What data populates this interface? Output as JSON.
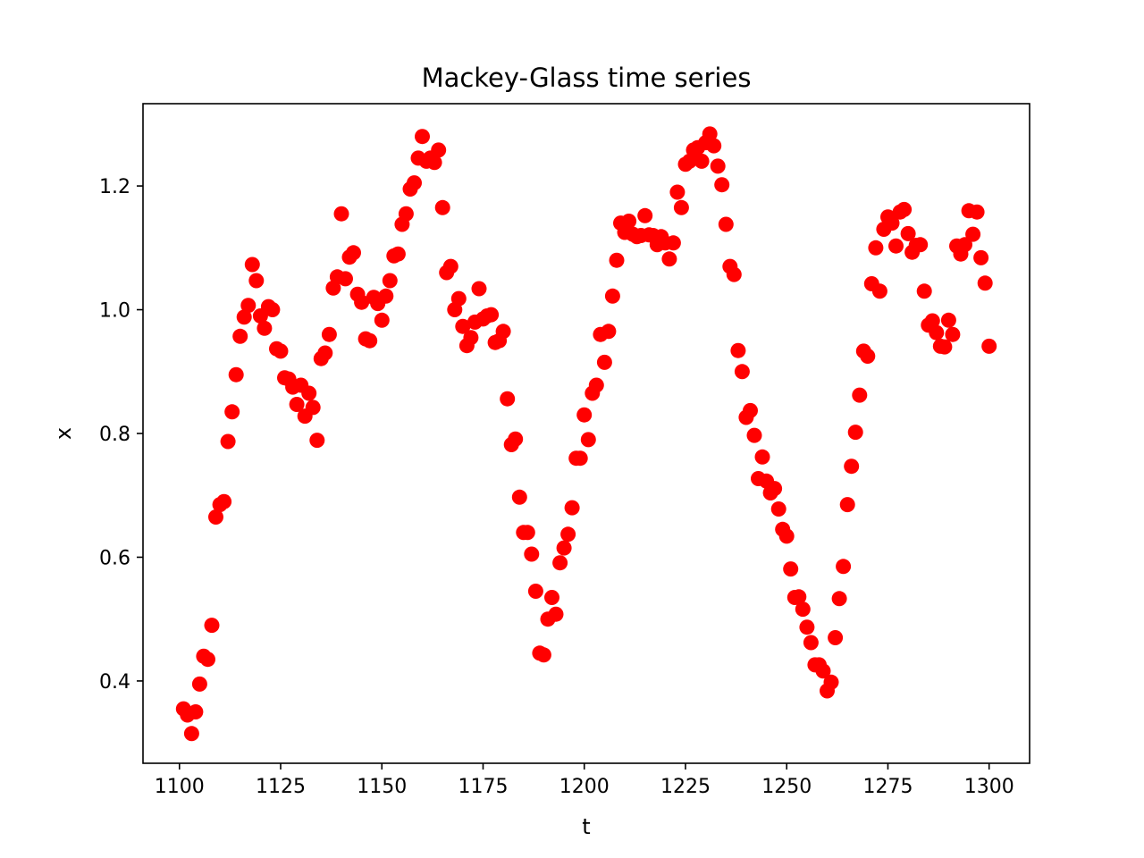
{
  "chart_data": {
    "type": "scatter",
    "title": "Mackey-Glass time series",
    "xlabel": "t",
    "ylabel": "x",
    "xlim": [
      1091,
      1310
    ],
    "ylim": [
      0.267,
      1.333
    ],
    "xticks": [
      1100,
      1125,
      1150,
      1175,
      1200,
      1225,
      1250,
      1275,
      1300
    ],
    "yticks": [
      0.4,
      0.6,
      0.8,
      1.0,
      1.2
    ],
    "ytick_labels": [
      "0.4",
      "0.6",
      "0.8",
      "1.0",
      "1.2"
    ],
    "grid": false,
    "marker": "circle",
    "color": "#ff0000",
    "series": [
      {
        "x": [
          1101,
          1102,
          1103,
          1104,
          1105,
          1106,
          1107,
          1108,
          1109,
          1110,
          1111,
          1112,
          1113,
          1114,
          1115,
          1116,
          1117,
          1118,
          1119,
          1120,
          1121,
          1122,
          1123,
          1124,
          1125,
          1126,
          1127,
          1128,
          1129,
          1130,
          1131,
          1132,
          1133,
          1134,
          1135,
          1136,
          1137,
          1138,
          1139,
          1140,
          1141,
          1142,
          1143,
          1144,
          1145,
          1146,
          1147,
          1148,
          1149,
          1150,
          1151,
          1152,
          1153,
          1154,
          1155,
          1156,
          1157,
          1158,
          1159,
          1160,
          1161,
          1162,
          1163,
          1164,
          1165,
          1166,
          1167,
          1168,
          1169,
          1170,
          1171,
          1172,
          1173,
          1174,
          1175,
          1176,
          1177,
          1178,
          1179,
          1180,
          1181,
          1182,
          1183,
          1184,
          1185,
          1186,
          1187,
          1188,
          1189,
          1190,
          1191,
          1192,
          1193,
          1194,
          1195,
          1196,
          1197,
          1198,
          1199,
          1200,
          1201,
          1202,
          1203,
          1204,
          1205,
          1206,
          1207,
          1208,
          1209,
          1210,
          1211,
          1212,
          1213,
          1214,
          1215,
          1216,
          1217,
          1218,
          1219,
          1220,
          1221,
          1222,
          1223,
          1224,
          1225,
          1226,
          1227,
          1228,
          1229,
          1230,
          1231,
          1232,
          1233,
          1234,
          1235,
          1236,
          1237,
          1238,
          1239,
          1240,
          1241,
          1242,
          1243,
          1244,
          1245,
          1246,
          1247,
          1248,
          1249,
          1250,
          1251,
          1252,
          1253,
          1254,
          1255,
          1256,
          1257,
          1258,
          1259,
          1260,
          1261,
          1262,
          1263,
          1264,
          1265,
          1266,
          1267,
          1268,
          1269,
          1270,
          1271,
          1272,
          1273,
          1274,
          1275,
          1276,
          1277,
          1278,
          1279,
          1280,
          1281,
          1282,
          1283,
          1284,
          1285,
          1286,
          1287,
          1288,
          1289,
          1290,
          1291,
          1292,
          1293,
          1294,
          1295,
          1296,
          1297,
          1298,
          1299,
          1300
        ],
        "y": [
          0.355,
          0.345,
          0.315,
          0.35,
          0.395,
          0.44,
          0.435,
          0.49,
          0.665,
          0.685,
          0.69,
          0.787,
          0.835,
          0.895,
          0.957,
          0.988,
          1.007,
          1.073,
          1.047,
          0.99,
          0.97,
          1.005,
          1.0,
          0.937,
          0.933,
          0.89,
          0.888,
          0.875,
          0.847,
          0.878,
          0.828,
          0.865,
          0.842,
          0.789,
          0.921,
          0.93,
          0.96,
          1.035,
          1.053,
          1.155,
          1.05,
          1.085,
          1.092,
          1.025,
          1.012,
          0.953,
          0.95,
          1.02,
          1.01,
          0.983,
          1.022,
          1.047,
          1.087,
          1.09,
          1.138,
          1.155,
          1.195,
          1.205,
          1.245,
          1.28,
          1.24,
          1.245,
          1.238,
          1.258,
          1.165,
          1.06,
          1.07,
          1.0,
          1.018,
          0.973,
          0.942,
          0.955,
          0.98,
          1.034,
          0.985,
          0.99,
          0.992,
          0.947,
          0.95,
          0.965,
          0.856,
          0.782,
          0.791,
          0.697,
          0.64,
          0.64,
          0.605,
          0.545,
          0.445,
          0.442,
          0.5,
          0.535,
          0.508,
          0.591,
          0.615,
          0.637,
          0.68,
          0.76,
          0.76,
          0.83,
          0.79,
          0.865,
          0.878,
          0.96,
          0.915,
          0.965,
          1.022,
          1.08,
          1.14,
          1.125,
          1.143,
          1.122,
          1.118,
          1.12,
          1.152,
          1.121,
          1.12,
          1.105,
          1.118,
          1.108,
          1.082,
          1.108,
          1.19,
          1.165,
          1.235,
          1.24,
          1.258,
          1.262,
          1.24,
          1.27,
          1.284,
          1.265,
          1.232,
          1.202,
          1.138,
          1.07,
          1.057,
          0.934,
          0.9,
          0.826,
          0.837,
          0.797,
          0.727,
          0.762,
          0.723,
          0.704,
          0.711,
          0.678,
          0.645,
          0.634,
          0.581,
          0.535,
          0.536,
          0.516,
          0.487,
          0.462,
          0.426,
          0.426,
          0.416,
          0.384,
          0.398,
          0.47,
          0.533,
          0.585,
          0.685,
          0.747,
          0.802,
          0.862,
          0.933,
          0.925,
          1.042,
          1.1,
          1.03,
          1.13,
          1.15,
          1.14,
          1.103,
          1.158,
          1.162,
          1.123,
          1.093,
          1.104,
          1.105,
          1.03,
          0.975,
          0.982,
          0.963,
          0.941,
          0.94,
          0.983,
          0.96,
          1.103,
          1.09,
          1.105,
          1.16,
          1.122,
          1.158,
          1.084,
          1.043,
          0.941
        ]
      }
    ]
  }
}
